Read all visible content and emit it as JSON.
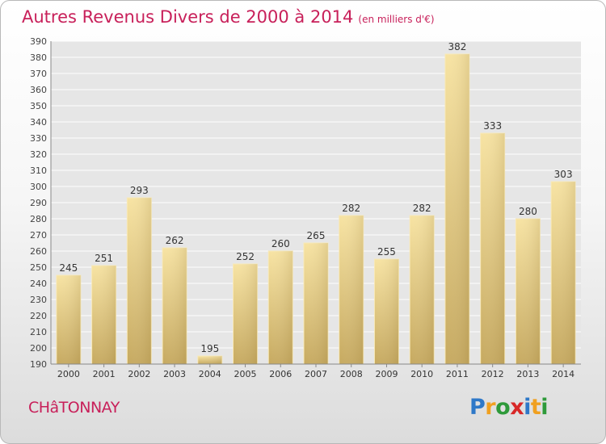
{
  "chart_data": {
    "type": "bar",
    "title": "Autres Revenus Divers de 2000 à 2014",
    "subtitle": "(en milliers d'€)",
    "categories": [
      "2000",
      "2001",
      "2002",
      "2003",
      "2004",
      "2005",
      "2006",
      "2007",
      "2008",
      "2009",
      "2010",
      "2011",
      "2012",
      "2013",
      "2014"
    ],
    "values": [
      245,
      251,
      293,
      262,
      195,
      252,
      260,
      265,
      282,
      255,
      282,
      382,
      333,
      280,
      303
    ],
    "ylim": [
      190,
      390
    ],
    "yticks": [
      190,
      200,
      210,
      220,
      230,
      240,
      250,
      260,
      270,
      280,
      290,
      300,
      310,
      320,
      330,
      340,
      350,
      360,
      370,
      380,
      390
    ],
    "grid": true,
    "bar_color": "#e8cc7e",
    "title_color": "#c8205a"
  },
  "footer": {
    "commune": "CHâTONNAY",
    "logo_letters": [
      "P",
      "r",
      "o",
      "x",
      "i",
      "t",
      "i"
    ],
    "logo_colors": [
      "#2e78c8",
      "#f0a020",
      "#2e9a3a",
      "#d82828",
      "#2e78c8",
      "#f0a020",
      "#2e9a3a"
    ]
  }
}
